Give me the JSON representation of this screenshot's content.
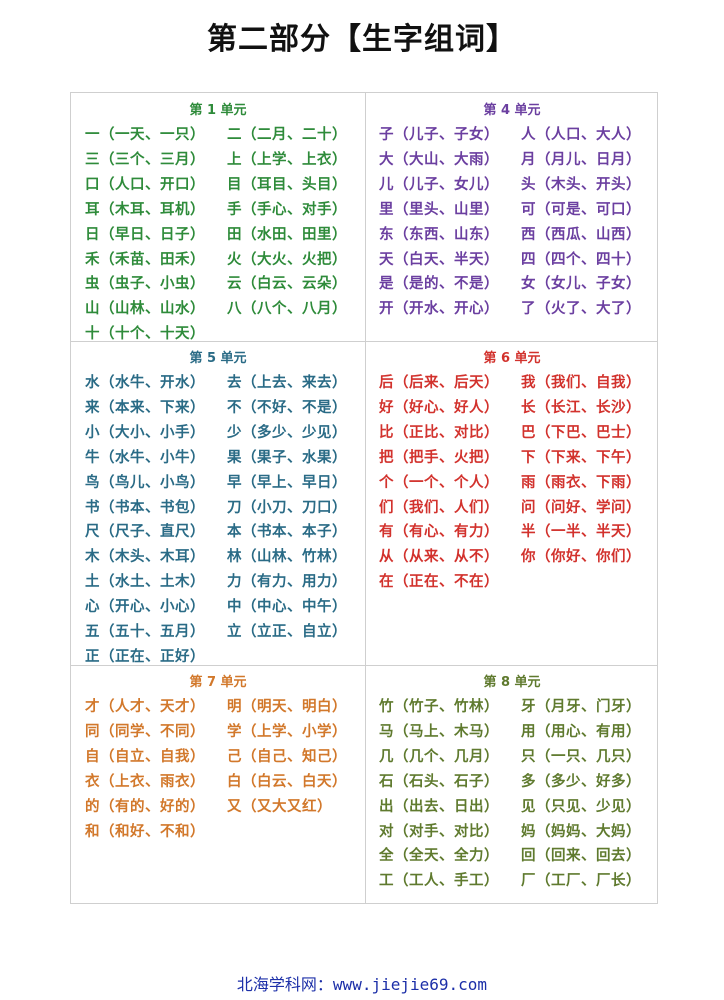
{
  "title": "第二部分【生字组词】",
  "units": [
    {
      "title": "第 1 单元",
      "color": "#2e8b3a",
      "left": [
        "一（一天、一只）",
        "三（三个、三月）",
        "口（人口、开口）",
        "耳（木耳、耳机）",
        "日（早日、日子）",
        "禾（禾苗、田禾）",
        "虫（虫子、小虫）",
        "山（山林、山水）",
        "十（十个、十天）"
      ],
      "right": [
        "二（二月、二十）",
        "上（上学、上衣）",
        "目（耳目、头目）",
        "手（手心、对手）",
        "田（水田、田里）",
        "火（大火、火把）",
        "云（白云、云朵）",
        "八（八个、八月）"
      ]
    },
    {
      "title": "第 4 单元",
      "color": "#6b3fa0",
      "left": [
        "子（儿子、子女）",
        "大（大山、大雨）",
        "儿（儿子、女儿）",
        "里（里头、山里）",
        "东（东西、山东）",
        "天（白天、半天）",
        "是（是的、不是）",
        "开（开水、开心）"
      ],
      "right": [
        "人（人口、大人）",
        "月（月儿、日月）",
        "头（木头、开头）",
        "可（可是、可口）",
        "西（西瓜、山西）",
        "四（四个、四十）",
        "女（女儿、子女）",
        "了（火了、大了）"
      ]
    },
    {
      "title": "第 5 单元",
      "color": "#2a6b86",
      "left": [
        "水（水牛、开水）",
        "来（本来、下来）",
        "小（大小、小手）",
        "牛（水牛、小牛）",
        "鸟（鸟儿、小鸟）",
        "书（书本、书包）",
        "尺（尺子、直尺）",
        "木（木头、木耳）",
        "土（水土、土木）",
        "心（开心、小心）",
        "五（五十、五月）",
        "正（正在、正好）"
      ],
      "right": [
        "去（上去、来去）",
        "不（不好、不是）",
        "少（多少、少见）",
        "果（果子、水果）",
        "早（早上、早日）",
        "刀（小刀、刀口）",
        "本（书本、本子）",
        "林（山林、竹林）",
        "力（有力、用力）",
        "中（中心、中午）",
        "立（立正、自立）"
      ]
    },
    {
      "title": "第 6 单元",
      "color": "#d2322d",
      "left": [
        "后（后来、后天）",
        "好（好心、好人）",
        "比（正比、对比）",
        "把（把手、火把）",
        "个（一个、个人）",
        "们（我们、人们）",
        "有（有心、有力）",
        "从（从来、从不）",
        "在（正在、不在）"
      ],
      "right": [
        "我（我们、自我）",
        "长（长江、长沙）",
        "巴（下巴、巴士）",
        "下（下来、下午）",
        "雨（雨衣、下雨）",
        "问（问好、学问）",
        "半（一半、半天）",
        "你（你好、你们）"
      ]
    },
    {
      "title": "第 7 单元",
      "color": "#d2782b",
      "left": [
        "才（人才、天才）",
        "同（同学、不同）",
        "自（自立、自我）",
        "衣（上衣、雨衣）",
        "的（有的、好的）",
        "和（和好、不和）"
      ],
      "right": [
        "明（明天、明白）",
        "学（上学、小学）",
        "己（自己、知己）",
        "白（白云、白天）",
        "又（又大又红）"
      ]
    },
    {
      "title": "第 8 单元",
      "color": "#5f7a2e",
      "left": [
        "竹（竹子、竹林）",
        "马（马上、木马）",
        "几（几个、几月）",
        "石（石头、石子）",
        "出（出去、日出）",
        "对（对手、对比）",
        "全（全天、全力）",
        "工（工人、手工）"
      ],
      "right": [
        "牙（月牙、门牙）",
        "用（用心、有用）",
        "只（一只、几只）",
        "多（多少、好多）",
        "见（只见、少见）",
        "妈（妈妈、大妈）",
        "回（回来、回去）",
        "厂（工厂、厂长）"
      ]
    }
  ],
  "footer": "北海学科网：www.jiejie69.com"
}
